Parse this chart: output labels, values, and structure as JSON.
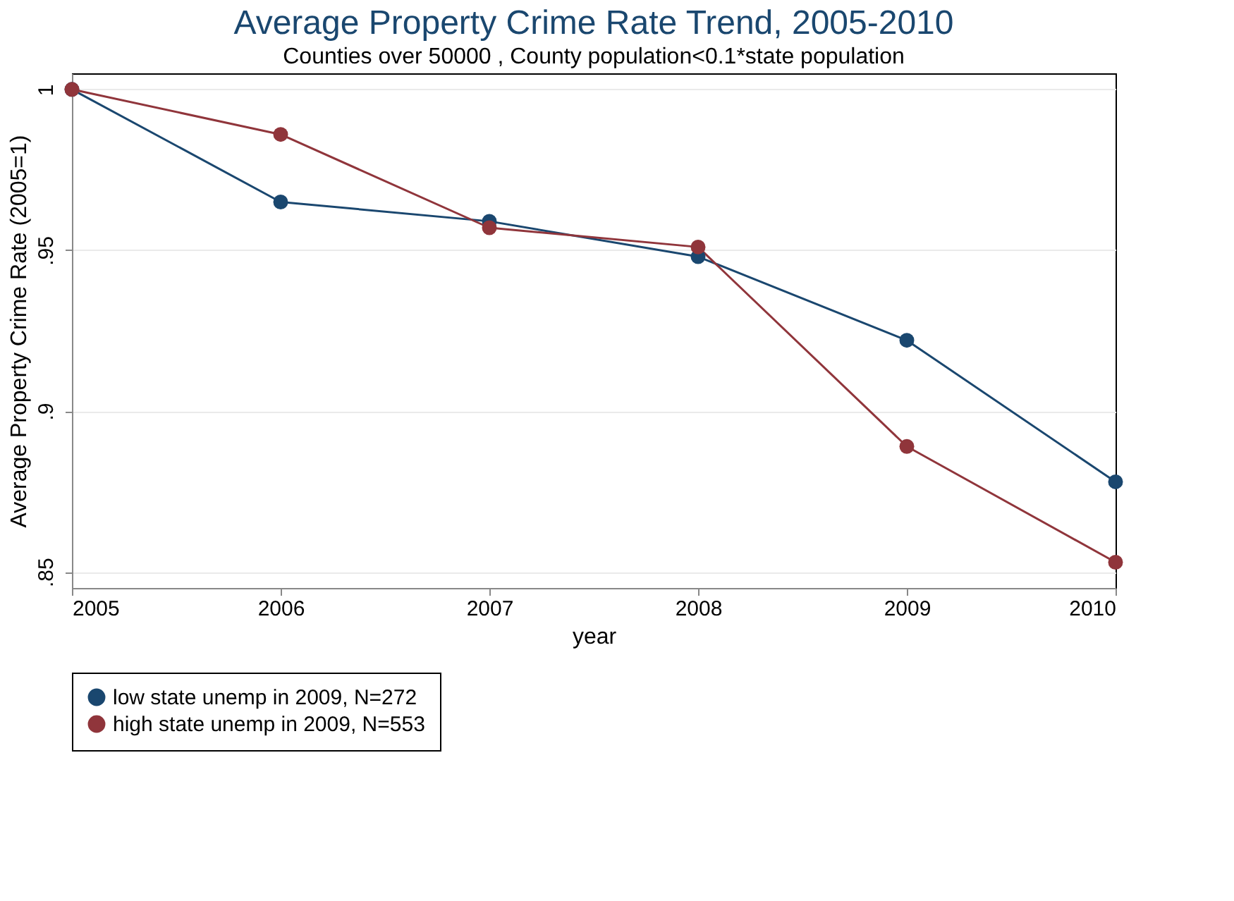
{
  "chart_data": {
    "type": "line",
    "title": "Average Property Crime Rate Trend, 2005-2010",
    "subtitle": "Counties over 50000 , County population<0.1*state population",
    "xlabel": "year",
    "ylabel": "Average Property Crime Rate (2005=1)",
    "x": [
      2005,
      2006,
      2007,
      2008,
      2009,
      2010
    ],
    "series": [
      {
        "name": "low state unemp in 2009, N=272",
        "color": "#1a476f",
        "values": [
          1.0,
          0.965,
          0.959,
          0.948,
          0.922,
          0.878
        ]
      },
      {
        "name": "high state unemp in 2009, N=553",
        "color": "#90353b",
        "values": [
          1.0,
          0.986,
          0.957,
          0.951,
          0.889,
          0.853
        ]
      }
    ],
    "xlim": [
      2005,
      2010
    ],
    "xticks": [
      2005,
      2006,
      2007,
      2008,
      2009,
      2010
    ],
    "ylim": [
      0.845,
      1.005
    ],
    "yticks": [
      {
        "value": 0.85,
        "label": ".85"
      },
      {
        "value": 0.9,
        "label": ".9"
      },
      {
        "value": 0.95,
        "label": ".95"
      },
      1
    ],
    "grid": "y",
    "legend": "bottom",
    "marker": "circle",
    "line_style": "solid"
  }
}
